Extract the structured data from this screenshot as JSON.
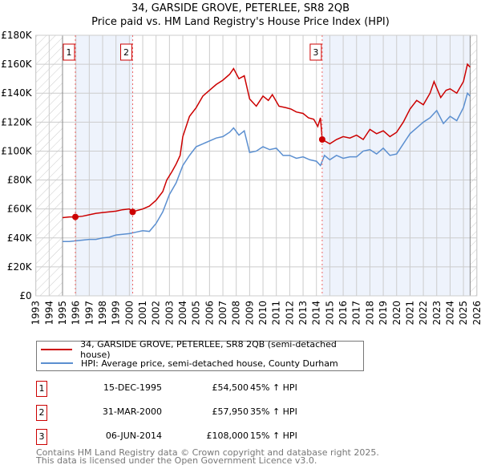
{
  "header": {
    "title": "34, GARSIDE GROVE, PETERLEE, SR8 2QB",
    "subtitle": "Price paid vs. HM Land Registry's House Price Index (HPI)"
  },
  "chart_data": {
    "type": "line",
    "title": "34, GARSIDE GROVE, PETERLEE, SR8 2QB",
    "subtitle": "Price paid vs. HM Land Registry's House Price Index (HPI)",
    "xlim": [
      1993,
      2026
    ],
    "ylim": [
      0,
      180000
    ],
    "yticks": [
      0,
      20000,
      40000,
      60000,
      80000,
      100000,
      120000,
      140000,
      160000,
      180000
    ],
    "ytick_labels": [
      "£0",
      "£20K",
      "£40K",
      "£60K",
      "£80K",
      "£100K",
      "£120K",
      "£140K",
      "£160K",
      "£180K"
    ],
    "xticks": [
      1993,
      1994,
      1995,
      1996,
      1997,
      1998,
      1999,
      2000,
      2001,
      2002,
      2003,
      2004,
      2005,
      2006,
      2007,
      2008,
      2009,
      2010,
      2011,
      2012,
      2013,
      2014,
      2015,
      2016,
      2017,
      2018,
      2019,
      2020,
      2021,
      2022,
      2023,
      2024,
      2025,
      2026
    ],
    "grid": true,
    "series": [
      {
        "name": "34, GARSIDE GROVE, PETERLEE, SR8 2QB (semi-detached house)",
        "color": "#cc0000",
        "x": [
          1995,
          1995.5,
          1995.96,
          1996.5,
          1997,
          1997.5,
          1998,
          1998.5,
          1999,
          1999.5,
          2000,
          2000.25,
          2000.6,
          2001,
          2001.5,
          2002,
          2002.5,
          2002.8,
          2003.2,
          2003.5,
          2003.8,
          2004,
          2004.5,
          2005,
          2005.5,
          2006,
          2006.5,
          2007,
          2007.5,
          2007.8,
          2008.2,
          2008.6,
          2009,
          2009.5,
          2010,
          2010.4,
          2010.7,
          2011.2,
          2011.7,
          2012.1,
          2012.5,
          2013,
          2013.4,
          2013.8,
          2014.1,
          2014.3,
          2014.43,
          2015,
          2015.5,
          2016,
          2016.5,
          2017,
          2017.5,
          2018,
          2018.5,
          2019,
          2019.5,
          2020,
          2020.5,
          2021,
          2021.5,
          2022,
          2022.5,
          2022.8,
          2023.3,
          2023.7,
          2024,
          2024.5,
          2025,
          2025.3,
          2025.5
        ],
        "y": [
          54000,
          54500,
          54500,
          55000,
          56000,
          57000,
          57500,
          58000,
          58500,
          59500,
          60000,
          57950,
          59000,
          60000,
          62000,
          66000,
          72000,
          80000,
          86000,
          91000,
          97000,
          110000,
          124000,
          130000,
          138000,
          142000,
          146000,
          149000,
          153000,
          157000,
          150000,
          152000,
          136000,
          131000,
          138000,
          135000,
          139000,
          131000,
          130000,
          129000,
          127000,
          126000,
          123000,
          122000,
          117000,
          123000,
          108000,
          105000,
          108000,
          110000,
          109000,
          111000,
          108000,
          115000,
          112000,
          114000,
          110000,
          113000,
          120000,
          129000,
          135000,
          132000,
          140000,
          148000,
          137000,
          142000,
          143000,
          140000,
          148000,
          160000,
          158000
        ]
      },
      {
        "name": "HPI: Average price, semi-detached house, County Durham",
        "color": "#5b8fd0",
        "x": [
          1995,
          1995.5,
          1996,
          1996.5,
          1997,
          1997.5,
          1998,
          1998.5,
          1999,
          1999.5,
          2000,
          2000.5,
          2001,
          2001.5,
          2002,
          2002.5,
          2003,
          2003.5,
          2004,
          2004.5,
          2005,
          2005.5,
          2006,
          2006.5,
          2007,
          2007.5,
          2007.8,
          2008.2,
          2008.6,
          2009,
          2009.5,
          2010,
          2010.5,
          2011,
          2011.5,
          2012,
          2012.5,
          2013,
          2013.5,
          2014,
          2014.3,
          2014.6,
          2015,
          2015.5,
          2016,
          2016.5,
          2017,
          2017.5,
          2018,
          2018.5,
          2019,
          2019.5,
          2020,
          2020.5,
          2021,
          2021.5,
          2022,
          2022.5,
          2023,
          2023.5,
          2024,
          2024.5,
          2025,
          2025.3,
          2025.5
        ],
        "y": [
          37500,
          37500,
          38000,
          38500,
          39000,
          39000,
          40000,
          40500,
          42000,
          42500,
          43000,
          44000,
          45000,
          44500,
          50000,
          58000,
          70000,
          78000,
          90000,
          97000,
          103000,
          105000,
          107000,
          109000,
          110000,
          113000,
          116000,
          111000,
          114000,
          99000,
          100000,
          103000,
          101000,
          102000,
          97000,
          97000,
          95000,
          96000,
          94000,
          93000,
          90000,
          97000,
          94000,
          97000,
          95000,
          96000,
          96000,
          100000,
          101000,
          98000,
          102000,
          97000,
          98000,
          105000,
          112000,
          116000,
          120000,
          123000,
          128000,
          119000,
          124000,
          121000,
          130000,
          140000,
          138000
        ]
      }
    ],
    "sales": [
      {
        "label": "1",
        "x": 1995.96,
        "y": 54500
      },
      {
        "label": "2",
        "x": 2000.25,
        "y": 57950
      },
      {
        "label": "3",
        "x": 2014.43,
        "y": 108000
      }
    ]
  },
  "legend": {
    "items": [
      {
        "label": "34, GARSIDE GROVE, PETERLEE, SR8 2QB (semi-detached house)",
        "color": "#cc0000"
      },
      {
        "label": "HPI: Average price, semi-detached house, County Durham",
        "color": "#5b8fd0"
      }
    ]
  },
  "table": [
    {
      "num": "1",
      "date": "15-DEC-1995",
      "price": "£54,500",
      "hpi": "45% ↑ HPI"
    },
    {
      "num": "2",
      "date": "31-MAR-2000",
      "price": "£57,950",
      "hpi": "35% ↑ HPI"
    },
    {
      "num": "3",
      "date": "06-JUN-2014",
      "price": "£108,000",
      "hpi": "15% ↑ HPI"
    }
  ],
  "footer": {
    "line1": "Contains HM Land Registry data © Crown copyright and database right 2025.",
    "line2": "This data is licensed under the Open Government Licence v3.0."
  }
}
